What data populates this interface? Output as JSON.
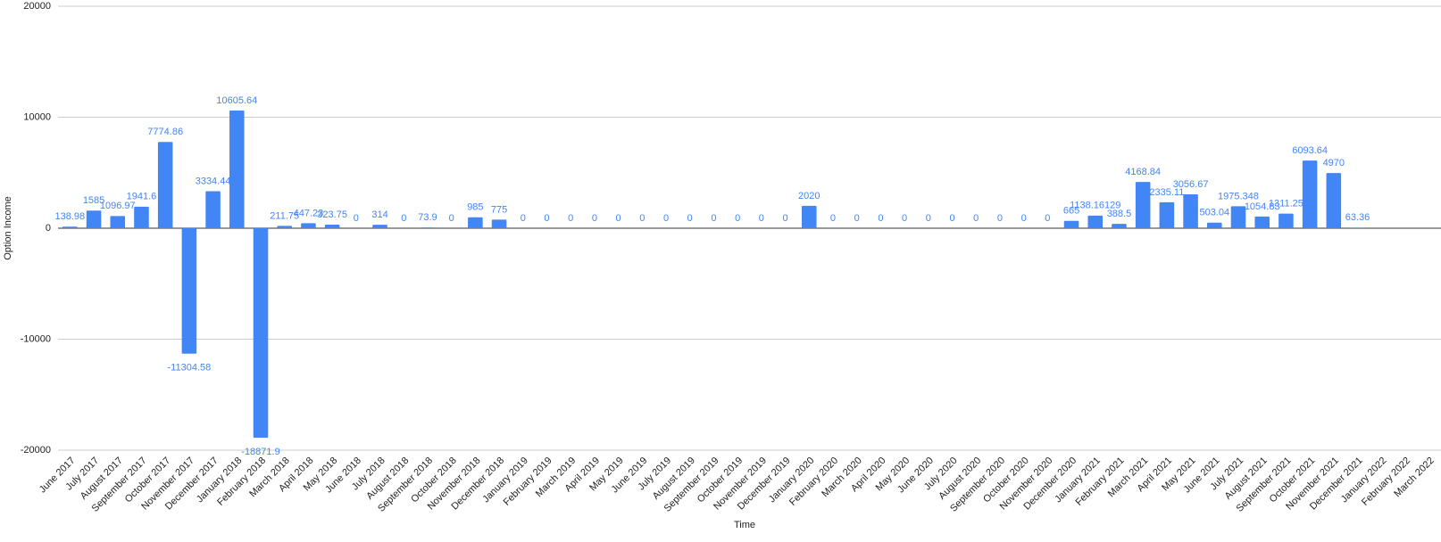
{
  "chart_data": {
    "type": "bar",
    "x_label": "Time",
    "y_label": "Option Income",
    "categories": [
      "June 2017",
      "July 2017",
      "August 2017",
      "September 2017",
      "October 2017",
      "November 2017",
      "December 2017",
      "January 2018",
      "February 2018",
      "March 2018",
      "April 2018",
      "May 2018",
      "June 2018",
      "July 2018",
      "August 2018",
      "September 2018",
      "October 2018",
      "November 2018",
      "December 2018",
      "January 2019",
      "February 2019",
      "March 2019",
      "April 2019",
      "May 2019",
      "June 2019",
      "July 2019",
      "August 2019",
      "September 2019",
      "October 2019",
      "November 2019",
      "December 2019",
      "January 2020",
      "February 2020",
      "March 2020",
      "April 2020",
      "May 2020",
      "June 2020",
      "July 2020",
      "August 2020",
      "September 2020",
      "October 2020",
      "November 2020",
      "December 2020",
      "January 2021",
      "February 2021",
      "March 2021",
      "April 2021",
      "May 2021",
      "June 2021",
      "July 2021",
      "August 2021",
      "September 2021",
      "October 2021",
      "November 2021",
      "December 2021",
      "January 2022",
      "February 2022",
      "March 2022"
    ],
    "values": [
      138.98,
      1585,
      1096.97,
      1941.6,
      7774.86,
      -11304.58,
      3334.44,
      10605.64,
      -18871.9,
      211.75,
      447.23,
      323.75,
      0,
      314,
      0,
      73.9,
      0,
      985,
      775,
      0,
      0,
      0,
      0,
      0,
      0,
      0,
      0,
      0,
      0,
      0,
      0,
      2020,
      0,
      0,
      0,
      0,
      0,
      0,
      0,
      0,
      0,
      0,
      665,
      1138.16129,
      388.5,
      4168.84,
      2335.11,
      3056.67,
      503.04,
      1975.348,
      1054.83,
      1311.25,
      6093.64,
      4970,
      63.36,
      null,
      null,
      null
    ],
    "color": "#4285f4",
    "ylim": [
      -20000,
      20000
    ],
    "yticks": [
      -20000,
      -10000,
      0,
      10000,
      20000
    ],
    "grid": true
  }
}
